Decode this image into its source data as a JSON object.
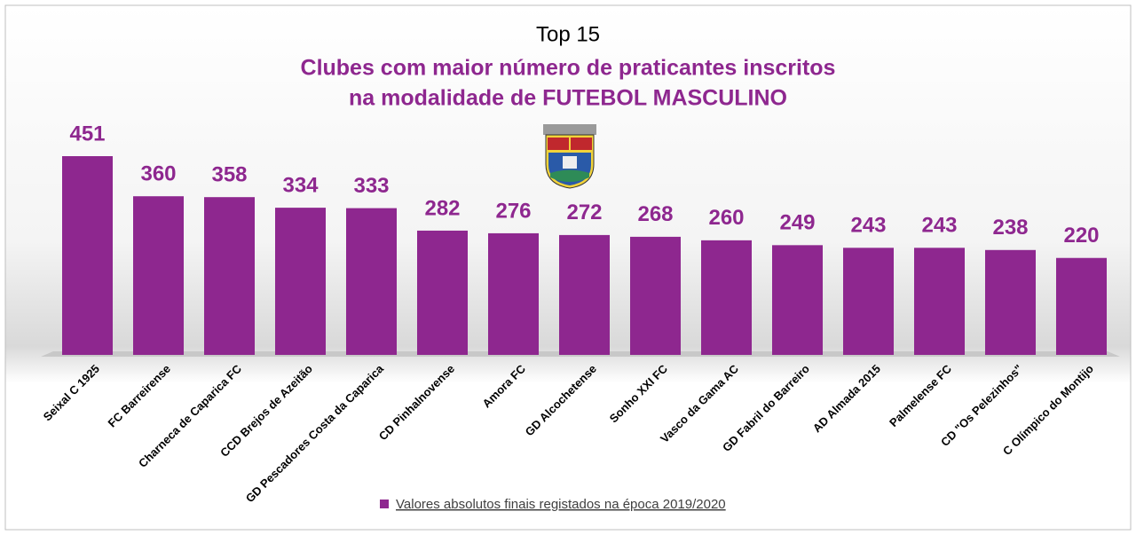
{
  "chart_data": {
    "type": "bar",
    "title": "Top 15",
    "subtitle": [
      "Clubes com maior número de praticantes inscritos",
      "na modalidade de FUTEBOL MASCULINO"
    ],
    "categories": [
      "Seixal C 1925",
      "FC Barreirense",
      "Charneca de Caparica FC",
      "CCD Brejos de Azeitão",
      "GD Pescadores Costa da Caparica",
      "CD Pinhalnovense",
      "Amora FC",
      "GD Alcochetense",
      "Sonho XXI FC",
      "Vasco da Gama AC",
      "GD Fabril do Barreiro",
      "AD Almada 2015",
      "Palmelense FC",
      "CD \"Os Pelezinhos\"",
      "C Olímpico do Montijo"
    ],
    "series": [
      {
        "name": "Valores absolutos finais registados na época 2019/2020",
        "color": "#8e278f",
        "values": [
          451,
          360,
          358,
          334,
          333,
          282,
          276,
          272,
          268,
          260,
          249,
          243,
          243,
          238,
          220
        ]
      }
    ],
    "legend": "bottom"
  }
}
